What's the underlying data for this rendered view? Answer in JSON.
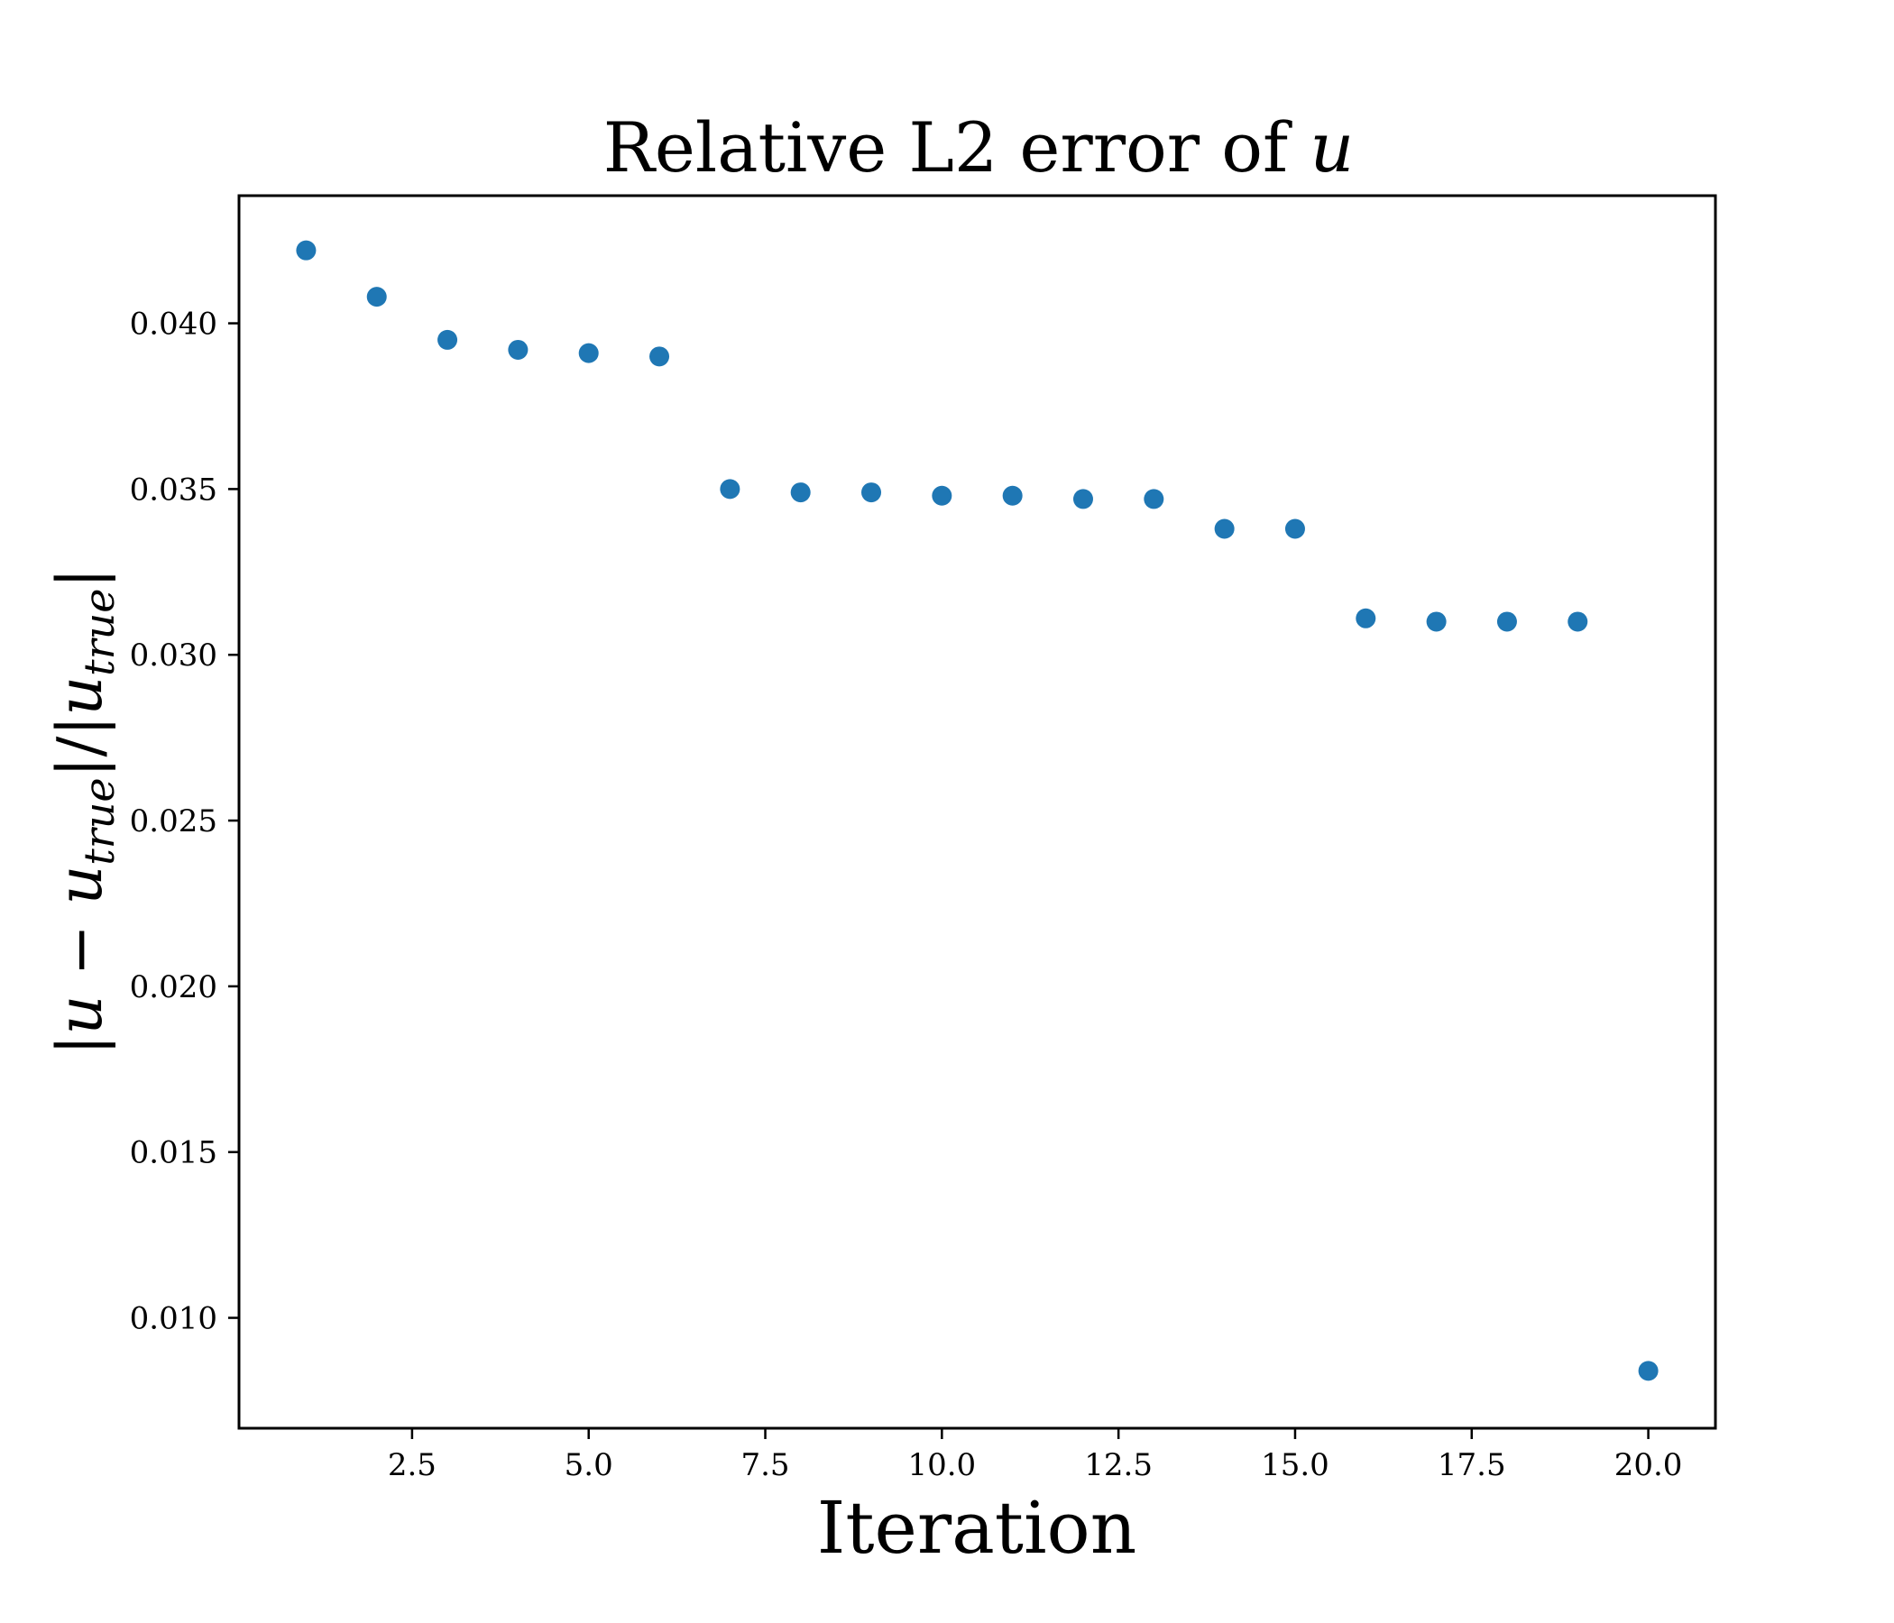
{
  "chart_data": {
    "type": "scatter",
    "title": "Relative L2 error of",
    "title_var": "u",
    "xlabel": "Iteration",
    "ylabel": {
      "numerator_var": "u",
      "minus": " − ",
      "numerator_sub_base": "u",
      "subscript": "true",
      "divider": "|/|",
      "denominator_base": "u",
      "denominator_subscript": "true"
    },
    "xlim": [
      0.05,
      20.95
    ],
    "ylim": [
      0.00667,
      0.04385
    ],
    "x_ticks": [
      2.5,
      5.0,
      7.5,
      10.0,
      12.5,
      15.0,
      17.5,
      20.0
    ],
    "x_tick_labels": [
      "2.5",
      "5.0",
      "7.5",
      "10.0",
      "12.5",
      "15.0",
      "17.5",
      "20.0"
    ],
    "y_ticks": [
      0.01,
      0.015,
      0.02,
      0.025,
      0.03,
      0.035,
      0.04
    ],
    "y_tick_labels": [
      "0.010",
      "0.015",
      "0.020",
      "0.025",
      "0.030",
      "0.035",
      "0.040"
    ],
    "grid": false,
    "marker_color": "#1f77b4",
    "x": [
      1,
      2,
      3,
      4,
      5,
      6,
      7,
      8,
      9,
      10,
      11,
      12,
      13,
      14,
      15,
      16,
      17,
      18,
      19,
      20
    ],
    "y": [
      0.0422,
      0.0408,
      0.0395,
      0.0392,
      0.0391,
      0.039,
      0.035,
      0.0349,
      0.0349,
      0.0348,
      0.0348,
      0.0347,
      0.0347,
      0.0338,
      0.0338,
      0.0311,
      0.031,
      0.031,
      0.031,
      0.0084
    ]
  }
}
